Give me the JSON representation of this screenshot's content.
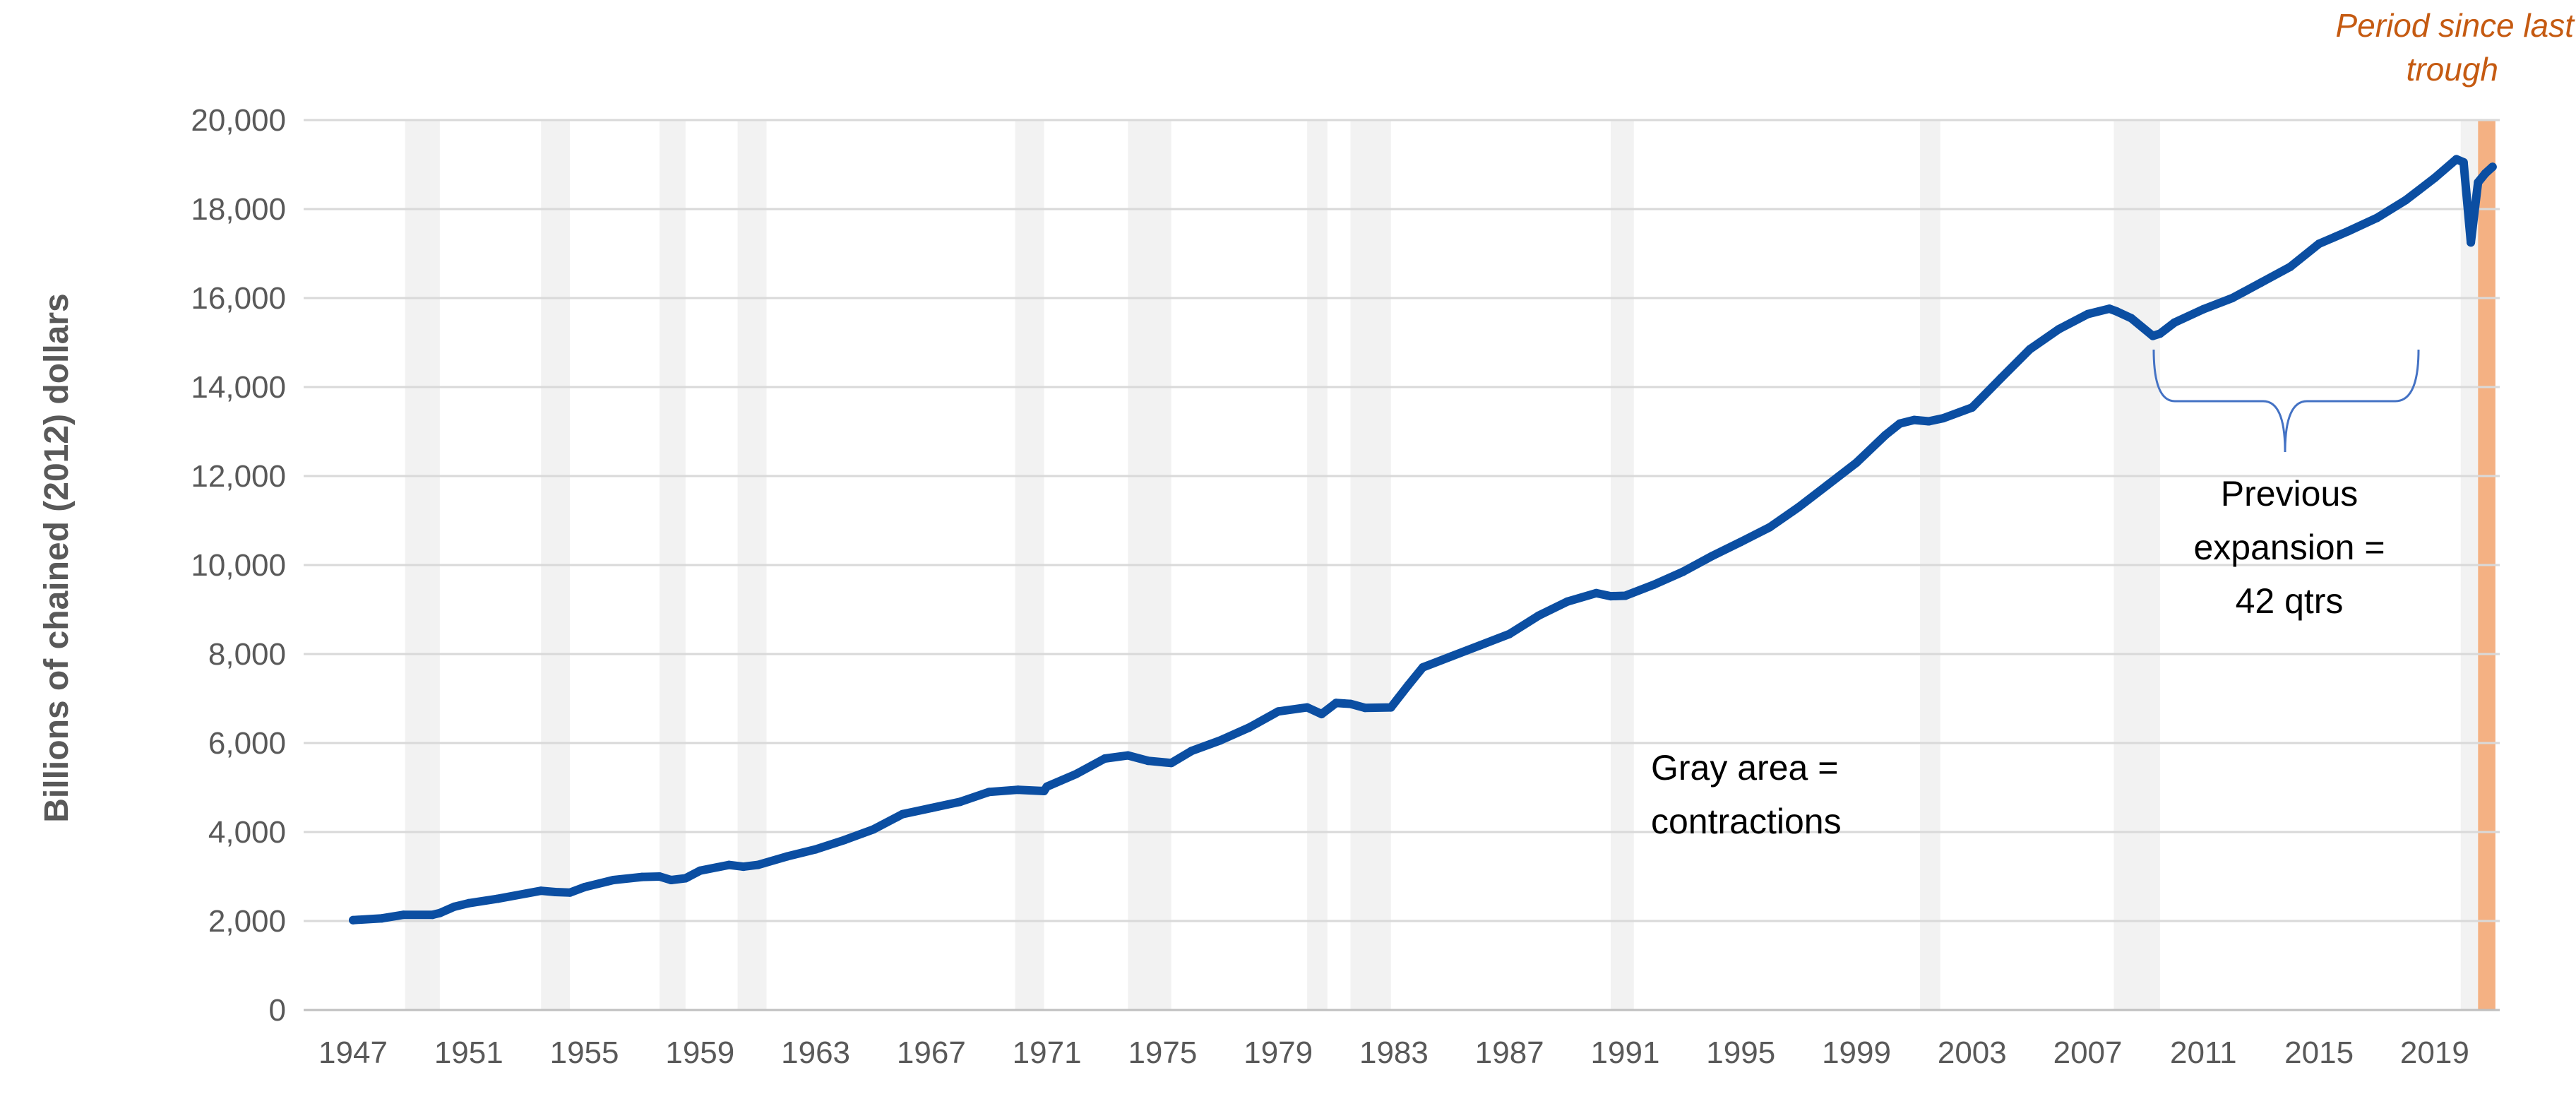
{
  "chart_data": {
    "type": "line",
    "title": "",
    "xlabel": "",
    "ylabel": "Billions of chained (2012) dollars",
    "xlim": [
      1947,
      2021.25
    ],
    "ylim": [
      0,
      20000
    ],
    "y_ticks": [
      0,
      2000,
      4000,
      6000,
      8000,
      10000,
      12000,
      14000,
      16000,
      18000,
      20000
    ],
    "y_tick_labels": [
      "0",
      "2,000",
      "4,000",
      "6,000",
      "8,000",
      "10,000",
      "12,000",
      "14,000",
      "16,000",
      "18,000",
      "20,000"
    ],
    "x_ticks": [
      1947,
      1951,
      1955,
      1959,
      1963,
      1967,
      1971,
      1975,
      1979,
      1983,
      1987,
      1991,
      1995,
      1999,
      2003,
      2007,
      2011,
      2015,
      2019
    ],
    "x_tick_labels": [
      "1947",
      "1951",
      "1955",
      "1959",
      "1963",
      "1967",
      "1971",
      "1975",
      "1979",
      "1983",
      "1987",
      "1991",
      "1995",
      "1999",
      "2003",
      "2007",
      "2011",
      "2015",
      "2019"
    ],
    "grid": true,
    "line_color": "#0B4EA2",
    "recession_color": "#F2F2F2",
    "trough_color": "#F4B183",
    "recessions": [
      [
        1948.8,
        1950.0
      ],
      [
        1953.5,
        1954.5
      ],
      [
        1957.6,
        1958.5
      ],
      [
        1960.3,
        1961.3
      ],
      [
        1969.9,
        1970.9
      ],
      [
        1973.8,
        1975.3
      ],
      [
        1980.0,
        1980.7
      ],
      [
        1981.5,
        1982.9
      ],
      [
        1990.5,
        1991.3
      ],
      [
        2001.2,
        2001.9
      ],
      [
        2007.9,
        2009.5
      ],
      [
        2019.9,
        2020.5
      ]
    ],
    "since_last_trough": [
      2020.5,
      2021.1
    ],
    "series": [
      {
        "name": "",
        "x": [
          1947.0,
          1948.0,
          1948.75,
          1949.75,
          1950.0,
          1950.5,
          1951.0,
          1952.0,
          1953.5,
          1954.0,
          1954.5,
          1955.0,
          1956.0,
          1957.0,
          1957.6,
          1958.0,
          1958.5,
          1959.0,
          1960.0,
          1960.5,
          1961.0,
          1962.0,
          1963.0,
          1964.0,
          1965.0,
          1966.0,
          1967.0,
          1968.0,
          1969.0,
          1970.0,
          1970.9,
          1971.0,
          1972.0,
          1973.0,
          1973.8,
          1974.5,
          1975.3,
          1976.0,
          1977.0,
          1978.0,
          1979.0,
          1980.0,
          1980.5,
          1981.0,
          1981.5,
          1982.0,
          1982.9,
          1983.5,
          1984.0,
          1985.0,
          1986.0,
          1987.0,
          1988.0,
          1989.0,
          1990.0,
          1990.5,
          1991.0,
          1992.0,
          1993.0,
          1994.0,
          1995.0,
          1996.0,
          1997.0,
          1998.0,
          1999.0,
          2000.0,
          2000.5,
          2001.0,
          2001.5,
          2002.0,
          2003.0,
          2004.0,
          2005.0,
          2006.0,
          2007.0,
          2007.75,
          2008.0,
          2008.5,
          2009.25,
          2009.5,
          2010.0,
          2011.0,
          2012.0,
          2013.0,
          2014.0,
          2015.0,
          2016.0,
          2017.0,
          2018.0,
          2019.0,
          2019.75,
          2020.0,
          2020.25,
          2020.5,
          2020.75,
          2021.0
        ],
        "y": [
          2020,
          2060,
          2140,
          2140,
          2180,
          2320,
          2400,
          2500,
          2680,
          2650,
          2640,
          2760,
          2920,
          2990,
          3000,
          2920,
          2960,
          3130,
          3260,
          3220,
          3260,
          3450,
          3610,
          3820,
          4060,
          4400,
          4540,
          4680,
          4900,
          4950,
          4920,
          5020,
          5300,
          5650,
          5720,
          5600,
          5550,
          5820,
          6060,
          6350,
          6710,
          6800,
          6650,
          6900,
          6880,
          6790,
          6800,
          7300,
          7700,
          7950,
          8200,
          8450,
          8860,
          9180,
          9370,
          9300,
          9310,
          9560,
          9850,
          10200,
          10520,
          10850,
          11300,
          11800,
          12300,
          12920,
          13180,
          13260,
          13230,
          13300,
          13540,
          14200,
          14850,
          15300,
          15640,
          15760,
          15700,
          15550,
          15150,
          15200,
          15450,
          15750,
          16000,
          16350,
          16700,
          17220,
          17500,
          17800,
          18200,
          18700,
          19120,
          19050,
          17250,
          18600,
          18800,
          18950
        ]
      }
    ],
    "annotations": {
      "trough_label_line1": "Period since last",
      "trough_label_line2": "trough",
      "expansion_line1": "Previous",
      "expansion_line2": "expansion =",
      "expansion_line3": "42 qtrs",
      "gray_line1": "Gray area =",
      "gray_line2": "contractions"
    }
  }
}
